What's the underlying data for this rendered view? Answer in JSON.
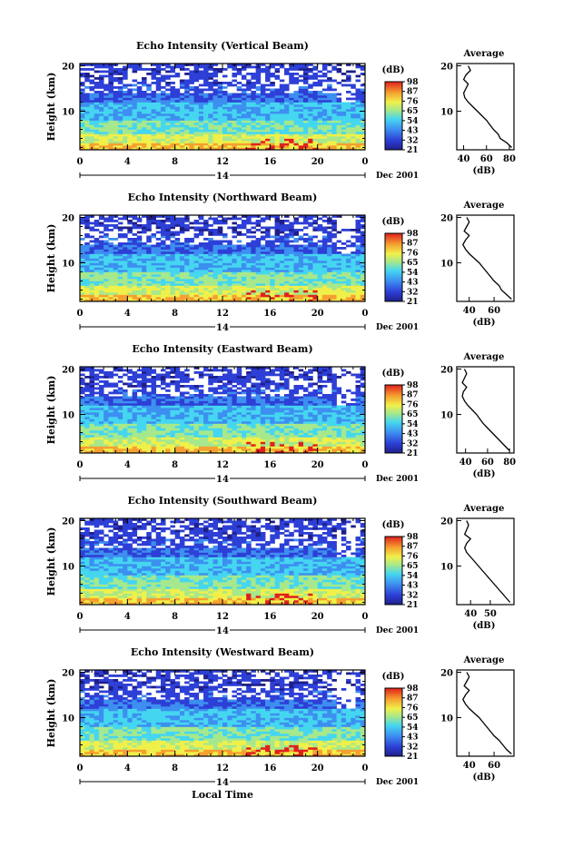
{
  "figure": {
    "xlabel": "Local Time",
    "date_label": "Dec 2001",
    "day_label": "14"
  },
  "chart_data": [
    {
      "type": "heatmap",
      "title": "Echo Intensity (Vertical Beam)",
      "xlabel": "Local Time",
      "ylabel": "Height (km)",
      "xlim": [
        0,
        24
      ],
      "ylim": [
        1.5,
        20.5
      ],
      "x_ticks": [
        "0",
        "4",
        "8",
        "12",
        "16",
        "20",
        "0"
      ],
      "y_ticks": [
        "10",
        "20"
      ],
      "colorbar": {
        "label": "(dB)",
        "ticks": [
          "21",
          "32",
          "43",
          "54",
          "65",
          "76",
          "87",
          "98"
        ]
      },
      "profile": {
        "title": "Average",
        "xlabel": "(dB)",
        "x_ticks": [
          "40",
          "60",
          "80"
        ],
        "xlim": [
          34,
          84
        ],
        "heights": [
          2,
          3,
          4,
          5,
          6,
          7,
          8,
          9,
          10,
          11,
          12,
          13,
          14,
          15,
          16,
          17,
          18,
          19,
          20
        ],
        "values": [
          82,
          78,
          72,
          70,
          66,
          63,
          60,
          56,
          52,
          48,
          44,
          41,
          40,
          42,
          44,
          40,
          42,
          46,
          44
        ]
      }
    },
    {
      "type": "heatmap",
      "title": "Echo Intensity (Northward Beam)",
      "xlabel": "Local Time",
      "ylabel": "Height (km)",
      "xlim": [
        0,
        24
      ],
      "ylim": [
        1.5,
        20.5
      ],
      "x_ticks": [
        "0",
        "4",
        "8",
        "12",
        "16",
        "20",
        "0"
      ],
      "y_ticks": [
        "10",
        "20"
      ],
      "colorbar": {
        "label": "(dB)",
        "ticks": [
          "21",
          "32",
          "43",
          "54",
          "65",
          "76",
          "87",
          "98"
        ]
      },
      "profile": {
        "title": "Average",
        "xlabel": "(dB)",
        "x_ticks": [
          "40",
          "60"
        ],
        "xlim": [
          30,
          76
        ],
        "heights": [
          2,
          3,
          4,
          5,
          6,
          7,
          8,
          9,
          10,
          11,
          12,
          13,
          14,
          15,
          16,
          17,
          18,
          19,
          20
        ],
        "values": [
          74,
          70,
          66,
          64,
          60,
          57,
          54,
          51,
          48,
          44,
          40,
          37,
          35,
          37,
          40,
          36,
          38,
          40,
          38
        ]
      }
    },
    {
      "type": "heatmap",
      "title": "Echo Intensity (Eastward Beam)",
      "xlabel": "Local Time",
      "ylabel": "Height (km)",
      "xlim": [
        0,
        24
      ],
      "ylim": [
        1.5,
        20.5
      ],
      "x_ticks": [
        "0",
        "4",
        "8",
        "12",
        "16",
        "20",
        "0"
      ],
      "y_ticks": [
        "10",
        "20"
      ],
      "colorbar": {
        "label": "(dB)",
        "ticks": [
          "21",
          "32",
          "43",
          "54",
          "65",
          "76",
          "87",
          "98"
        ]
      },
      "profile": {
        "title": "Average",
        "xlabel": "(dB)",
        "x_ticks": [
          "40",
          "60",
          "80"
        ],
        "xlim": [
          32,
          84
        ],
        "heights": [
          2,
          3,
          4,
          5,
          6,
          7,
          8,
          9,
          10,
          11,
          12,
          13,
          14,
          15,
          16,
          17,
          18,
          19,
          20
        ],
        "values": [
          80,
          76,
          72,
          68,
          64,
          60,
          56,
          53,
          50,
          46,
          42,
          39,
          37,
          38,
          41,
          37,
          39,
          41,
          39
        ]
      }
    },
    {
      "type": "heatmap",
      "title": "Echo Intensity (Southward Beam)",
      "xlabel": "Local Time",
      "ylabel": "Height (km)",
      "xlim": [
        0,
        24
      ],
      "ylim": [
        1.5,
        20.5
      ],
      "x_ticks": [
        "0",
        "4",
        "8",
        "12",
        "16",
        "20",
        "0"
      ],
      "y_ticks": [
        "10",
        "20"
      ],
      "colorbar": {
        "label": "(dB)",
        "ticks": [
          "21",
          "32",
          "43",
          "54",
          "65",
          "76",
          "87",
          "98"
        ]
      },
      "profile": {
        "title": "Average",
        "xlabel": "(dB)",
        "x_ticks": [
          "40",
          "50"
        ],
        "xlim": [
          33,
          62
        ],
        "heights": [
          2,
          3,
          4,
          5,
          6,
          7,
          8,
          9,
          10,
          11,
          12,
          13,
          14,
          15,
          16,
          17,
          18,
          19,
          20
        ],
        "values": [
          60,
          58,
          56,
          54,
          52,
          50,
          48,
          46,
          44,
          42,
          40,
          38,
          37,
          38,
          40,
          37,
          38,
          39,
          38
        ]
      }
    },
    {
      "type": "heatmap",
      "title": "Echo Intensity (Westward Beam)",
      "xlabel": "Local Time",
      "ylabel": "Height (km)",
      "xlim": [
        0,
        24
      ],
      "ylim": [
        1.5,
        20.5
      ],
      "x_ticks": [
        "0",
        "4",
        "8",
        "12",
        "16",
        "20",
        "0"
      ],
      "y_ticks": [
        "10",
        "20"
      ],
      "colorbar": {
        "label": "(dB)",
        "ticks": [
          "21",
          "32",
          "43",
          "54",
          "65",
          "76",
          "87",
          "98"
        ]
      },
      "profile": {
        "title": "Average",
        "xlabel": "(dB)",
        "x_ticks": [
          "40",
          "60"
        ],
        "xlim": [
          30,
          76
        ],
        "heights": [
          2,
          3,
          4,
          5,
          6,
          7,
          8,
          9,
          10,
          11,
          12,
          13,
          14,
          15,
          16,
          17,
          18,
          19,
          20
        ],
        "values": [
          74,
          70,
          67,
          64,
          60,
          57,
          54,
          51,
          48,
          44,
          40,
          37,
          35,
          37,
          40,
          36,
          38,
          40,
          38
        ]
      }
    }
  ]
}
